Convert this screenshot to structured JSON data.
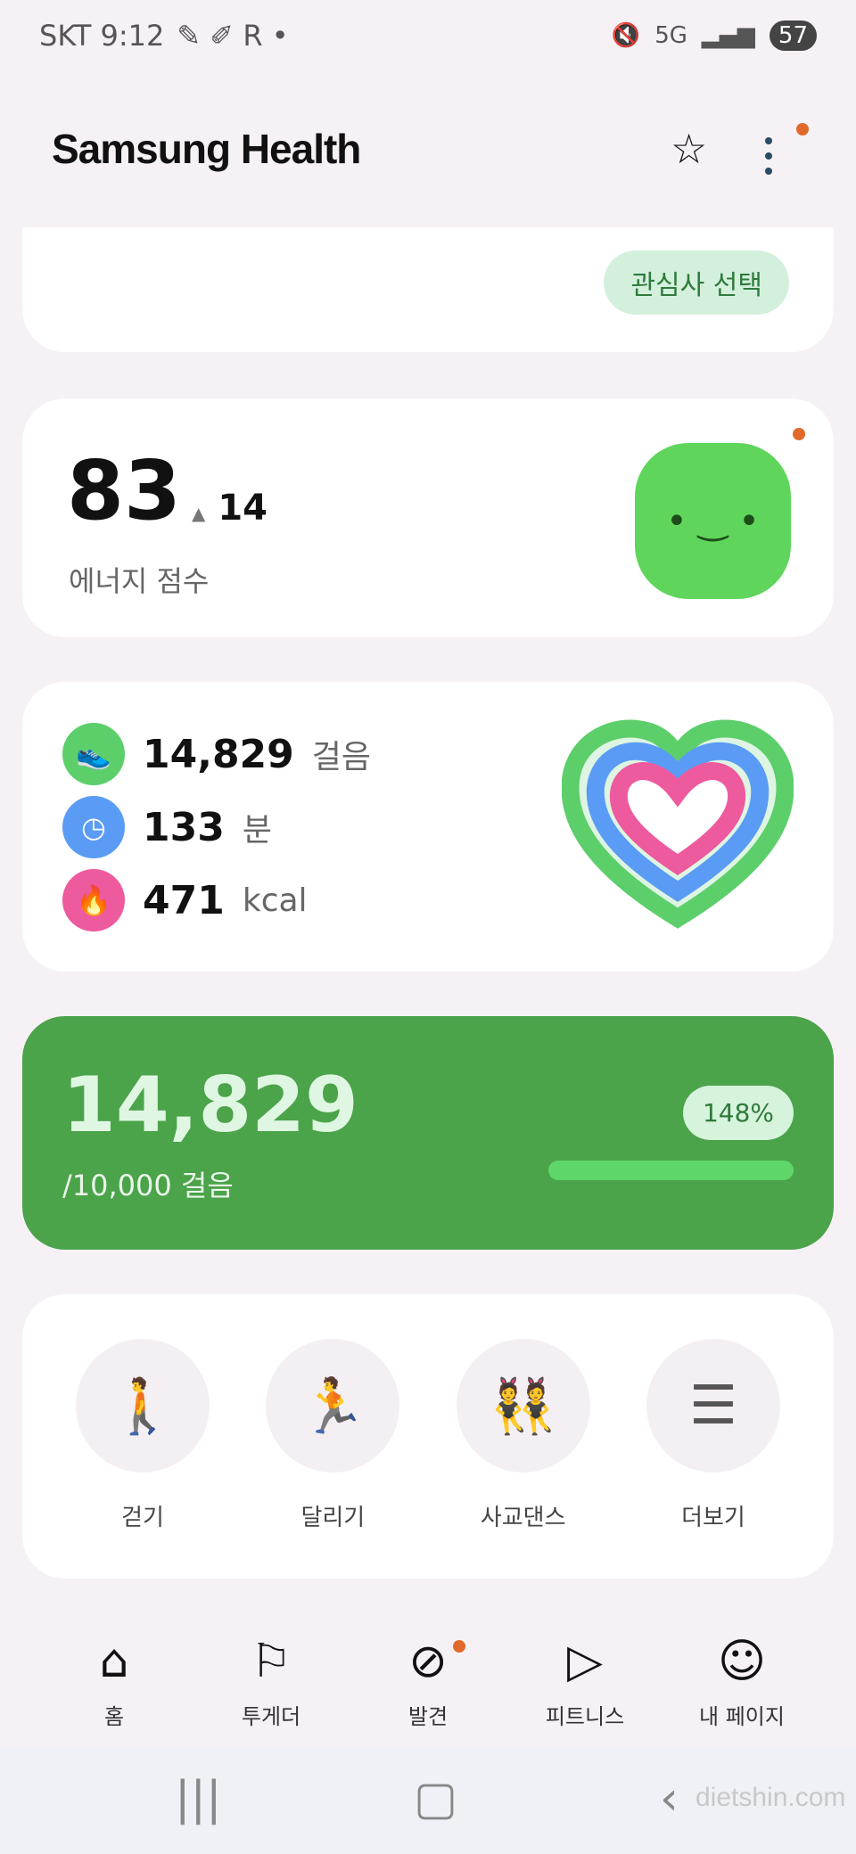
{
  "status_bar": {
    "carrier": "SKT",
    "time": "9:12",
    "battery": "57",
    "network": "5G"
  },
  "header": {
    "title": "Samsung Health"
  },
  "interests_card": {
    "button": "관심사 선택"
  },
  "energy": {
    "score": "83",
    "delta": "14",
    "label": "에너지 점수"
  },
  "activity": {
    "steps": "14,829",
    "steps_unit": "걸음",
    "minutes": "133",
    "minutes_unit": "분",
    "kcal": "471",
    "kcal_unit": "kcal",
    "colors": {
      "steps": "#5ccf6a",
      "minutes": "#5a9cf5",
      "kcal": "#ee5a9e"
    }
  },
  "steps_card": {
    "steps": "14,829",
    "goal": "/10,000 걸음",
    "percent_label": "148%",
    "percent": 148,
    "color": "#4ba34a"
  },
  "exercises": [
    {
      "label": "걷기",
      "icon": "walk-icon"
    },
    {
      "label": "달리기",
      "icon": "run-icon"
    },
    {
      "label": "사교댄스",
      "icon": "dance-icon"
    },
    {
      "label": "더보기",
      "icon": "list-icon"
    }
  ],
  "bottom_nav": [
    {
      "label": "홈",
      "icon": "home-icon",
      "active": true
    },
    {
      "label": "투게더",
      "icon": "flag-icon"
    },
    {
      "label": "발견",
      "icon": "compass-icon"
    },
    {
      "label": "피트니스",
      "icon": "play-calendar-icon"
    },
    {
      "label": "내 페이지",
      "icon": "person-icon"
    }
  ],
  "watermark": "dietshin.com"
}
